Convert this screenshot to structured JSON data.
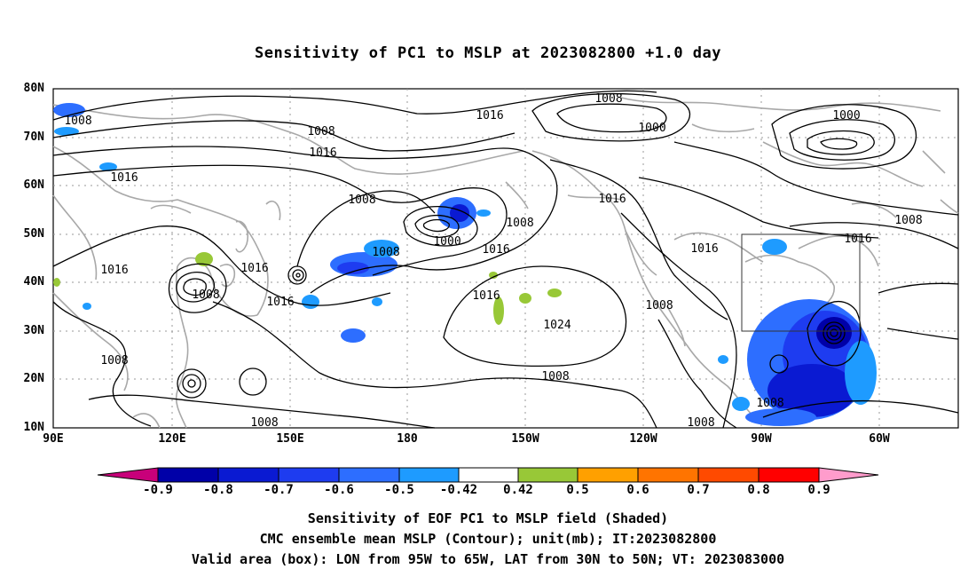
{
  "title": "Sensitivity of PC1 to MSLP at 2023082800 +1.0 day",
  "map": {
    "lat_labels": [
      "80N",
      "70N",
      "60N",
      "50N",
      "40N",
      "30N",
      "20N",
      "10N"
    ],
    "lon_labels": [
      "90E",
      "120E",
      "150E",
      "180",
      "150W",
      "120W",
      "90W",
      "60W"
    ],
    "contour_labels": [
      "1008",
      "1008",
      "1016",
      "1016",
      "1008",
      "1016",
      "1008",
      "1000",
      "1016",
      "1008",
      "1008",
      "1016",
      "1024",
      "1016",
      "1008",
      "1000",
      "1008",
      "1016",
      "1016",
      "1008",
      "1008",
      "1000",
      "1016",
      "1016",
      "1008",
      "1008",
      "1008",
      "1008"
    ],
    "valid_box": {
      "lon_from": "95W",
      "lon_to": "65W",
      "lat_from": "30N",
      "lat_to": "50N"
    },
    "colors": {
      "land_outline": "#a8a8a8",
      "contour": "#000000",
      "grid": "#999999"
    }
  },
  "colorbar": {
    "labels": [
      "-0.9",
      "-0.8",
      "-0.7",
      "-0.6",
      "-0.5",
      "-0.42",
      "0.42",
      "0.5",
      "0.6",
      "0.7",
      "0.8",
      "0.9"
    ],
    "colors": [
      "#c8007a",
      "#0000a8",
      "#0a1ad2",
      "#1e3cf0",
      "#2d6eff",
      "#1e9bff",
      "#00c8ff",
      "#ffffff",
      "#98c837",
      "#ffa000",
      "#ff7400",
      "#ff4a00",
      "#ff0000",
      "#ff9ccc"
    ]
  },
  "captions": [
    "Sensitivity of EOF PC1 to MSLP field (Shaded)",
    "CMC ensemble mean MSLP (Contour); unit(mb); IT:2023082800",
    "Valid area (box): LON from 95W to 65W, LAT from 30N to 50N; VT: 2023083000"
  ]
}
